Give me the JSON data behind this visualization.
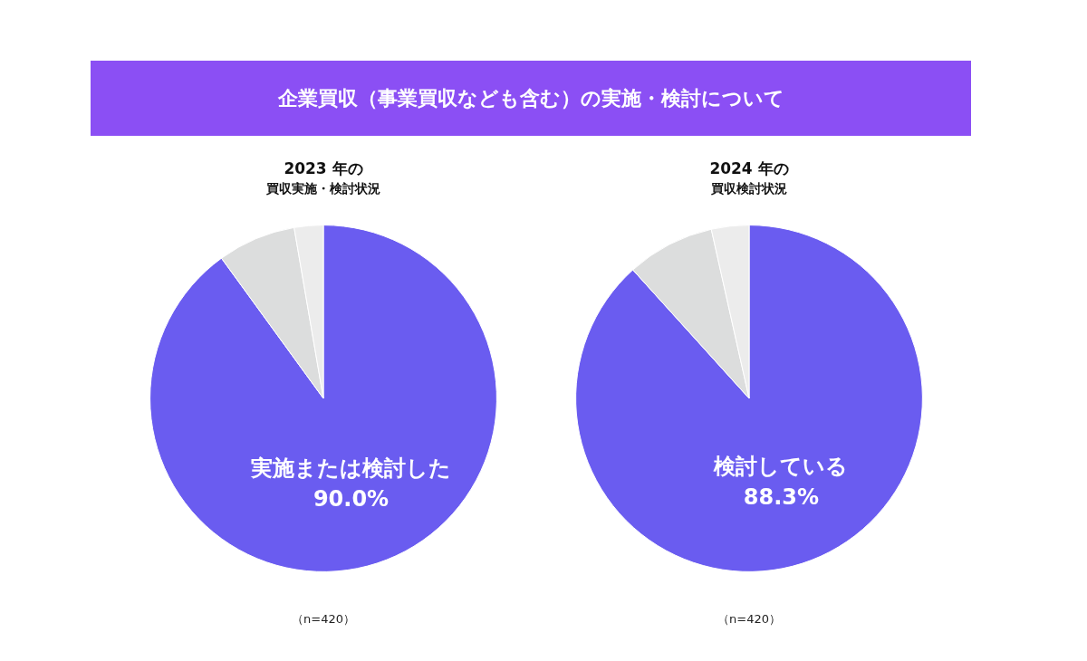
{
  "chart_data": [
    {
      "type": "other",
      "title": "企業買収（事業買収なども含む）の実施・検討について"
    },
    {
      "type": "pie",
      "title": "2023 年の",
      "subtitle": "買収実施・検討状況",
      "categories": [
        "実施または検討した",
        null,
        null
      ],
      "values": [
        90.0,
        7.3,
        2.7
      ],
      "colors": [
        "#6a5cf0",
        "#dcdddd",
        "#ececec"
      ],
      "value_labels": [
        "90.0%",
        null,
        null
      ],
      "annotations": [
        "（n=420）"
      ]
    },
    {
      "type": "pie",
      "title": "2024 年の",
      "subtitle": "買収検討状況",
      "categories": [
        "検討している",
        null,
        null
      ],
      "values": [
        88.3,
        8.2,
        3.5
      ],
      "colors": [
        "#6a5cf0",
        "#dcdddd",
        "#ececec"
      ],
      "value_labels": [
        "88.3%",
        null,
        null
      ],
      "annotations": [
        "（n=420）"
      ]
    }
  ]
}
